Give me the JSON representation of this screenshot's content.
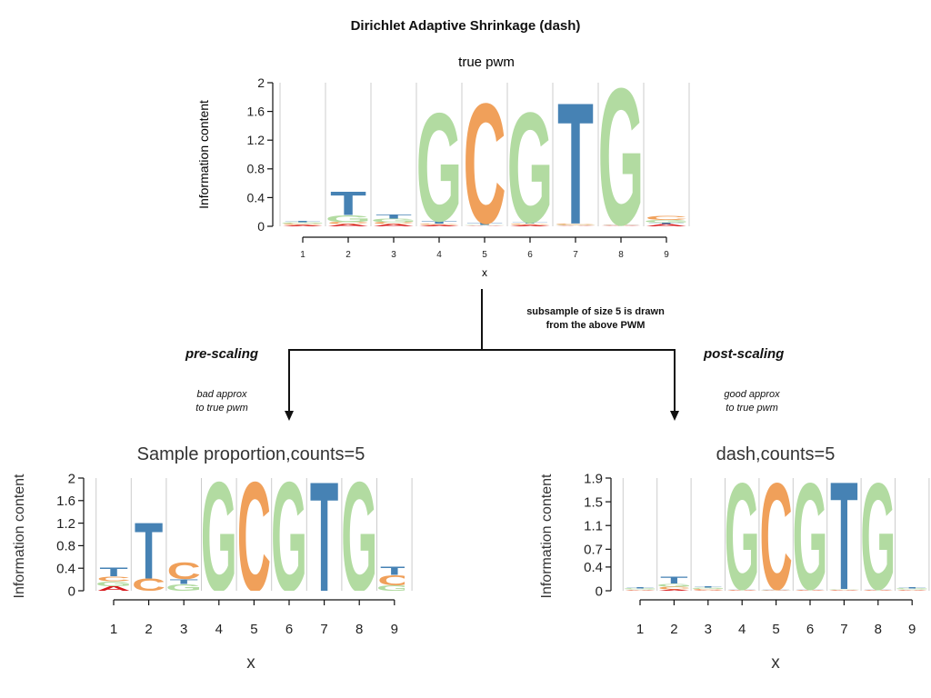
{
  "title": "Dirichlet Adaptive Shrinkage (dash)",
  "subsample_note": {
    "line1": "subsample of size 5 is drawn",
    "line2": "from the above PWM"
  },
  "branches": {
    "left": {
      "label": "pre-scaling",
      "approx_line1": "bad approx",
      "approx_line2": "to true pwm"
    },
    "right": {
      "label": "post-scaling",
      "approx_line1": "good approx",
      "approx_line2": "to true pwm"
    }
  },
  "colors": {
    "A": "#d7191c",
    "C": "#f0a05a",
    "G": "#b2dba1",
    "T": "#4682b4",
    "grid": "#cccccc"
  },
  "chart_data": [
    {
      "id": "top",
      "type": "sequence-logo",
      "title": "true pwm",
      "xlabel": "x",
      "ylabel": "Information content",
      "ylim": [
        0,
        2
      ],
      "yticks": [
        "0",
        "0.4",
        "0.8",
        "1.2",
        "1.6",
        "2"
      ],
      "yticks_values": [
        0,
        0.4,
        0.8,
        1.2,
        1.6,
        2
      ],
      "xticks": [
        "1",
        "2",
        "3",
        "4",
        "5",
        "6",
        "7",
        "8",
        "9"
      ],
      "positions": [
        [
          [
            "A",
            0.02
          ],
          [
            "C",
            0.02
          ],
          [
            "G",
            0.02
          ],
          [
            "T",
            0.02
          ]
        ],
        [
          [
            "A",
            0.03
          ],
          [
            "C",
            0.03
          ],
          [
            "G",
            0.1
          ],
          [
            "T",
            0.34
          ]
        ],
        [
          [
            "A",
            0.03
          ],
          [
            "C",
            0.03
          ],
          [
            "G",
            0.05
          ],
          [
            "T",
            0.06
          ]
        ],
        [
          [
            "A",
            0.02
          ],
          [
            "C",
            0.02
          ],
          [
            "T",
            0.04
          ],
          [
            "G",
            1.55
          ]
        ],
        [
          [
            "A",
            0.01
          ],
          [
            "G",
            0.01
          ],
          [
            "T",
            0.03
          ],
          [
            "C",
            1.72
          ]
        ],
        [
          [
            "A",
            0.02
          ],
          [
            "C",
            0.02
          ],
          [
            "T",
            0.02
          ],
          [
            "G",
            1.58
          ]
        ],
        [
          [
            "A",
            0.01
          ],
          [
            "G",
            0.01
          ],
          [
            "C",
            0.02
          ],
          [
            "T",
            1.74
          ]
        ],
        [
          [
            "A",
            0.01
          ],
          [
            "C",
            0.01
          ],
          [
            "T",
            0.01
          ],
          [
            "G",
            1.96
          ]
        ],
        [
          [
            "A",
            0.03
          ],
          [
            "T",
            0.02
          ],
          [
            "G",
            0.04
          ],
          [
            "C",
            0.06
          ]
        ]
      ]
    },
    {
      "id": "left",
      "type": "sequence-logo",
      "title": "Sample proportion,counts=5",
      "xlabel": "x",
      "ylabel": "Information content",
      "ylim": [
        0,
        2
      ],
      "yticks": [
        "0",
        "0.4",
        "0.8",
        "1.2",
        "1.6",
        "2"
      ],
      "yticks_values": [
        0,
        0.4,
        0.8,
        1.2,
        1.6,
        2
      ],
      "xticks": [
        "1",
        "2",
        "3",
        "4",
        "5",
        "6",
        "7",
        "8",
        "9"
      ],
      "positions": [
        [
          [
            "A",
            0.08
          ],
          [
            "G",
            0.09
          ],
          [
            "C",
            0.09
          ],
          [
            "T",
            0.16
          ]
        ],
        [
          [
            "C",
            0.22
          ],
          [
            "T",
            1.02
          ]
        ],
        [
          [
            "G",
            0.12
          ],
          [
            "T",
            0.09
          ],
          [
            "C",
            0.3
          ]
        ],
        [
          [
            "G",
            2.0
          ]
        ],
        [
          [
            "C",
            2.0
          ]
        ],
        [
          [
            "G",
            2.0
          ]
        ],
        [
          [
            "T",
            2.0
          ]
        ],
        [
          [
            "G",
            2.0
          ]
        ],
        [
          [
            "G",
            0.1
          ],
          [
            "C",
            0.18
          ],
          [
            "T",
            0.15
          ]
        ]
      ]
    },
    {
      "id": "right",
      "type": "sequence-logo",
      "title": "dash,counts=5",
      "xlabel": "x",
      "ylabel": "Information content",
      "ylim": [
        0,
        1.9
      ],
      "yticks": [
        "0",
        "0.4",
        "0.7",
        "1.1",
        "1.5",
        "1.9"
      ],
      "yticks_values": [
        0,
        0.4,
        0.7,
        1.1,
        1.5,
        1.9
      ],
      "xticks": [
        "1",
        "2",
        "3",
        "4",
        "5",
        "6",
        "7",
        "8",
        "9"
      ],
      "positions": [
        [
          [
            "A",
            0.01
          ],
          [
            "C",
            0.01
          ],
          [
            "G",
            0.02
          ],
          [
            "T",
            0.02
          ]
        ],
        [
          [
            "A",
            0.02
          ],
          [
            "C",
            0.05
          ],
          [
            "G",
            0.05
          ],
          [
            "T",
            0.12
          ]
        ],
        [
          [
            "A",
            0.01
          ],
          [
            "C",
            0.02
          ],
          [
            "G",
            0.02
          ],
          [
            "T",
            0.02
          ]
        ],
        [
          [
            "A",
            0.01
          ],
          [
            "C",
            0.01
          ],
          [
            "T",
            0.01
          ],
          [
            "G",
            1.85
          ]
        ],
        [
          [
            "A",
            0.01
          ],
          [
            "G",
            0.01
          ],
          [
            "T",
            0.01
          ],
          [
            "C",
            1.85
          ]
        ],
        [
          [
            "A",
            0.01
          ],
          [
            "C",
            0.01
          ],
          [
            "T",
            0.01
          ],
          [
            "G",
            1.85
          ]
        ],
        [
          [
            "A",
            0.01
          ],
          [
            "C",
            0.01
          ],
          [
            "G",
            0.01
          ],
          [
            "T",
            1.87
          ]
        ],
        [
          [
            "A",
            0.01
          ],
          [
            "C",
            0.01
          ],
          [
            "T",
            0.01
          ],
          [
            "G",
            1.85
          ]
        ],
        [
          [
            "A",
            0.01
          ],
          [
            "C",
            0.01
          ],
          [
            "G",
            0.02
          ],
          [
            "T",
            0.02
          ]
        ]
      ]
    }
  ]
}
